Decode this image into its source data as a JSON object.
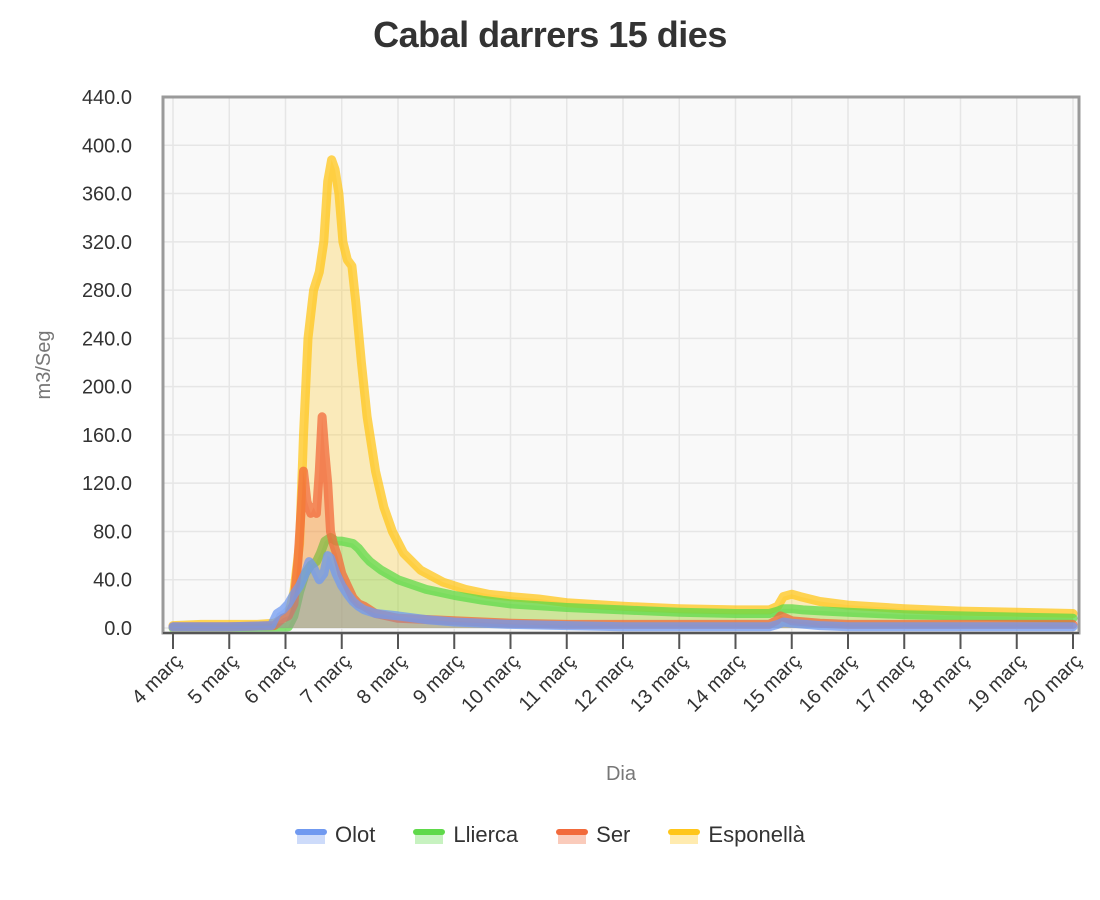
{
  "chart_data": {
    "type": "area",
    "title": "Cabal darrers 15 dies",
    "xlabel": "Dia",
    "ylabel": "m3/Seg",
    "ylim": [
      0,
      440
    ],
    "xlim": [
      4,
      20.1
    ],
    "y_ticks": [
      "0.0",
      "40.0",
      "80.0",
      "120.0",
      "160.0",
      "200.0",
      "240.0",
      "280.0",
      "320.0",
      "360.0",
      "400.0",
      "440.0"
    ],
    "x_ticks": [
      {
        "day": 4,
        "label": "4 març"
      },
      {
        "day": 5,
        "label": "5 març"
      },
      {
        "day": 6,
        "label": "6 març"
      },
      {
        "day": 7,
        "label": "7 març"
      },
      {
        "day": 8,
        "label": "8 març"
      },
      {
        "day": 9,
        "label": "9 març"
      },
      {
        "day": 10,
        "label": "10 març"
      },
      {
        "day": 11,
        "label": "11 març"
      },
      {
        "day": 12,
        "label": "12 març"
      },
      {
        "day": 13,
        "label": "13 març"
      },
      {
        "day": 14,
        "label": "14 març"
      },
      {
        "day": 15,
        "label": "15 març"
      },
      {
        "day": 16,
        "label": "16 març"
      },
      {
        "day": 17,
        "label": "17 març"
      },
      {
        "day": 18,
        "label": "18 març"
      },
      {
        "day": 19,
        "label": "19 març"
      },
      {
        "day": 20,
        "label": "20 març"
      }
    ],
    "grid": true,
    "legend_position": "bottom-center",
    "series": [
      {
        "name": "Esponellà",
        "color": "#ffc61a",
        "points": [
          [
            4,
            2
          ],
          [
            4.5,
            3
          ],
          [
            5,
            3
          ],
          [
            5.5,
            3
          ],
          [
            5.8,
            4
          ],
          [
            6.05,
            10
          ],
          [
            6.15,
            30
          ],
          [
            6.25,
            70
          ],
          [
            6.32,
            160
          ],
          [
            6.4,
            240
          ],
          [
            6.5,
            280
          ],
          [
            6.6,
            295
          ],
          [
            6.68,
            320
          ],
          [
            6.75,
            370
          ],
          [
            6.82,
            388
          ],
          [
            6.88,
            380
          ],
          [
            6.95,
            360
          ],
          [
            7.02,
            320
          ],
          [
            7.1,
            305
          ],
          [
            7.18,
            300
          ],
          [
            7.25,
            270
          ],
          [
            7.35,
            220
          ],
          [
            7.45,
            175
          ],
          [
            7.6,
            130
          ],
          [
            7.75,
            100
          ],
          [
            7.9,
            80
          ],
          [
            8.1,
            62
          ],
          [
            8.4,
            48
          ],
          [
            8.8,
            38
          ],
          [
            9.2,
            32
          ],
          [
            9.6,
            28
          ],
          [
            10,
            26
          ],
          [
            10.5,
            24
          ],
          [
            11,
            21
          ],
          [
            12,
            18
          ],
          [
            13,
            16
          ],
          [
            14,
            15
          ],
          [
            14.6,
            15
          ],
          [
            14.75,
            18
          ],
          [
            14.85,
            26
          ],
          [
            15,
            28
          ],
          [
            15.15,
            26
          ],
          [
            15.5,
            22
          ],
          [
            16,
            19
          ],
          [
            17,
            16
          ],
          [
            18,
            14
          ],
          [
            19,
            13
          ],
          [
            20,
            12
          ]
        ]
      },
      {
        "name": "Llierca",
        "color": "#5fd94a",
        "points": [
          [
            4,
            0
          ],
          [
            5,
            0
          ],
          [
            5.9,
            0
          ],
          [
            6.05,
            1
          ],
          [
            6.15,
            10
          ],
          [
            6.25,
            30
          ],
          [
            6.35,
            45
          ],
          [
            6.45,
            52
          ],
          [
            6.55,
            55
          ],
          [
            6.62,
            62
          ],
          [
            6.7,
            72
          ],
          [
            6.8,
            75
          ],
          [
            6.9,
            72
          ],
          [
            7.0,
            72
          ],
          [
            7.1,
            71
          ],
          [
            7.2,
            70
          ],
          [
            7.3,
            66
          ],
          [
            7.4,
            60
          ],
          [
            7.5,
            55
          ],
          [
            7.7,
            48
          ],
          [
            8,
            40
          ],
          [
            8.5,
            32
          ],
          [
            9,
            27
          ],
          [
            9.5,
            23
          ],
          [
            10,
            20
          ],
          [
            11,
            17
          ],
          [
            12,
            15
          ],
          [
            13,
            13
          ],
          [
            14,
            12
          ],
          [
            14.6,
            12
          ],
          [
            14.75,
            14
          ],
          [
            14.85,
            16
          ],
          [
            15,
            16
          ],
          [
            15.2,
            15
          ],
          [
            15.6,
            14
          ],
          [
            16,
            13
          ],
          [
            17,
            11
          ],
          [
            18,
            10
          ],
          [
            19,
            9
          ],
          [
            20,
            8
          ]
        ]
      },
      {
        "name": "Ser",
        "color": "#f26a3b",
        "points": [
          [
            4,
            1
          ],
          [
            5,
            1
          ],
          [
            5.8,
            2
          ],
          [
            5.95,
            8
          ],
          [
            6.05,
            10
          ],
          [
            6.15,
            20
          ],
          [
            6.22,
            55
          ],
          [
            6.28,
            100
          ],
          [
            6.32,
            130
          ],
          [
            6.38,
            105
          ],
          [
            6.45,
            95
          ],
          [
            6.5,
            100
          ],
          [
            6.55,
            95
          ],
          [
            6.6,
            130
          ],
          [
            6.65,
            175
          ],
          [
            6.7,
            145
          ],
          [
            6.75,
            120
          ],
          [
            6.8,
            80
          ],
          [
            6.85,
            70
          ],
          [
            6.92,
            60
          ],
          [
            7.0,
            45
          ],
          [
            7.1,
            35
          ],
          [
            7.2,
            25
          ],
          [
            7.3,
            20
          ],
          [
            7.4,
            18
          ],
          [
            7.6,
            12
          ],
          [
            8,
            8
          ],
          [
            9,
            6
          ],
          [
            10,
            4
          ],
          [
            11,
            3
          ],
          [
            12,
            3
          ],
          [
            13,
            3
          ],
          [
            14,
            3
          ],
          [
            14.6,
            3
          ],
          [
            14.72,
            6
          ],
          [
            14.8,
            10
          ],
          [
            14.9,
            8
          ],
          [
            15,
            6
          ],
          [
            15.5,
            4
          ],
          [
            16,
            3
          ],
          [
            18,
            3
          ],
          [
            20,
            3
          ]
        ]
      },
      {
        "name": "Olot",
        "color": "#7099f0",
        "points": [
          [
            4,
            1
          ],
          [
            5,
            1
          ],
          [
            5.75,
            2
          ],
          [
            5.85,
            12
          ],
          [
            5.95,
            15
          ],
          [
            6.05,
            20
          ],
          [
            6.15,
            28
          ],
          [
            6.25,
            35
          ],
          [
            6.35,
            45
          ],
          [
            6.42,
            55
          ],
          [
            6.5,
            50
          ],
          [
            6.6,
            40
          ],
          [
            6.68,
            45
          ],
          [
            6.75,
            60
          ],
          [
            6.8,
            58
          ],
          [
            6.9,
            45
          ],
          [
            7.0,
            35
          ],
          [
            7.1,
            28
          ],
          [
            7.2,
            22
          ],
          [
            7.3,
            18
          ],
          [
            7.4,
            15
          ],
          [
            7.6,
            12
          ],
          [
            8,
            10
          ],
          [
            8.5,
            7
          ],
          [
            9,
            5
          ],
          [
            10,
            3
          ],
          [
            11,
            2
          ],
          [
            12,
            1
          ],
          [
            13,
            1
          ],
          [
            14,
            1
          ],
          [
            14.6,
            1
          ],
          [
            14.75,
            3
          ],
          [
            14.85,
            5
          ],
          [
            15,
            4
          ],
          [
            15.5,
            2
          ],
          [
            16,
            1
          ],
          [
            18,
            1
          ],
          [
            20,
            1
          ]
        ]
      }
    ]
  }
}
